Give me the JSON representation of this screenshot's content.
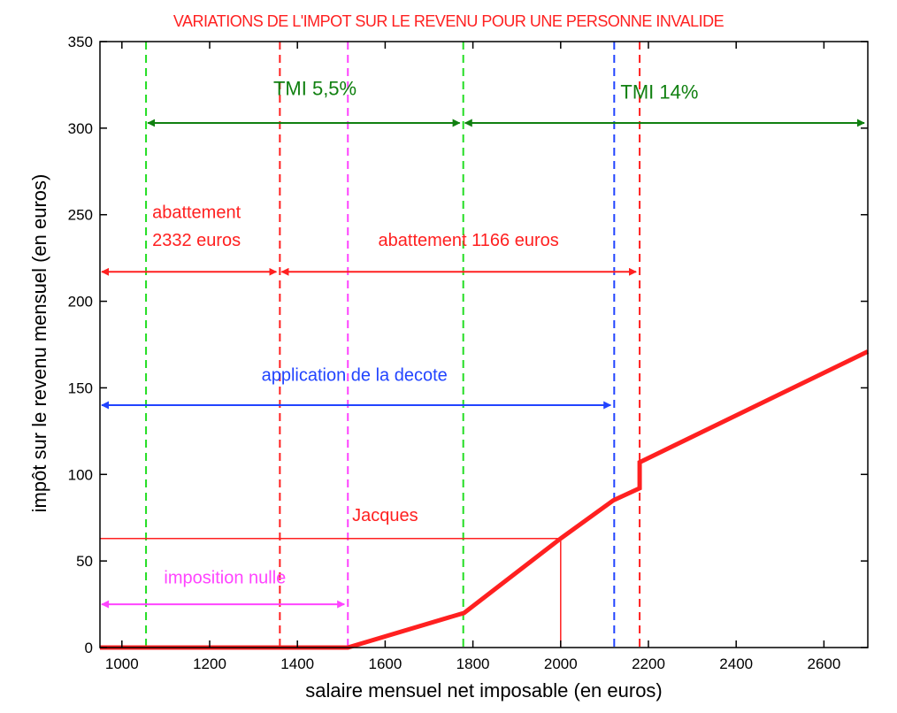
{
  "chart_data": {
    "type": "line",
    "title": "VARIATIONS DE L'IMPOT SUR LE REVENU POUR UNE PERSONNE INVALIDE",
    "xlabel": "salaire mensuel net imposable (en euros)",
    "ylabel": "impôt sur le revenu mensuel (en euros)",
    "xlim": [
      950,
      2700
    ],
    "ylim": [
      0,
      350
    ],
    "x_ticks": [
      1000,
      1200,
      1400,
      1600,
      1800,
      2000,
      2200,
      2400,
      2600
    ],
    "y_ticks": [
      0,
      50,
      100,
      150,
      200,
      250,
      300,
      350
    ],
    "grid": false,
    "series": [
      {
        "color": "#ff2020",
        "points": [
          {
            "x": 950,
            "y": 0
          },
          {
            "x": 1515,
            "y": 0
          },
          {
            "x": 1780,
            "y": 20
          },
          {
            "x": 2000,
            "y": 63
          },
          {
            "x": 2120,
            "y": 85
          },
          {
            "x": 2180,
            "y": 92
          },
          {
            "x": 2180,
            "y": 107
          },
          {
            "x": 2700,
            "y": 171
          }
        ]
      }
    ],
    "vertical_lines": [
      {
        "x": 1055,
        "color": "#22dd22",
        "dashed": true
      },
      {
        "x": 1778,
        "color": "#22dd22",
        "dashed": true
      },
      {
        "x": 1360,
        "color": "#ff2020",
        "dashed": true
      },
      {
        "x": 2180,
        "color": "#ff2020",
        "dashed": true
      },
      {
        "x": 1515,
        "color": "#ff44ff",
        "dashed": true
      },
      {
        "x": 2122,
        "color": "#2244ff",
        "dashed": true
      }
    ],
    "ranges": [
      {
        "x_from": 1055,
        "x_to": 1778,
        "y": 303,
        "color": "#108010"
      },
      {
        "x_from": 1778,
        "x_to": 2700,
        "y": 303,
        "color": "#108010"
      },
      {
        "x_from": 950,
        "x_to": 1360,
        "y": 217,
        "color": "#ff2020"
      },
      {
        "x_from": 1360,
        "x_to": 2180,
        "y": 217,
        "color": "#ff2020"
      },
      {
        "x_from": 950,
        "x_to": 2122,
        "y": 140,
        "color": "#2244ff"
      },
      {
        "x_from": 950,
        "x_to": 1515,
        "y": 25,
        "color": "#ff44ff"
      }
    ],
    "annotations": [
      {
        "text": "TMI 5,5%",
        "x": 1440,
        "y": 319,
        "color": "#108010"
      },
      {
        "text": "TMI 14%",
        "x": 2225,
        "y": 317,
        "color": "#108010"
      },
      {
        "text": "abattement",
        "x": 1170,
        "y": 248,
        "color": "#ff2020"
      },
      {
        "text": "2332 euros",
        "x": 1170,
        "y": 232,
        "color": "#ff2020"
      },
      {
        "text": "abattement 1166 euros",
        "x": 1790,
        "y": 232,
        "color": "#ff2020"
      },
      {
        "text": "application de la decote",
        "x": 1530,
        "y": 154,
        "color": "#2244ff"
      },
      {
        "text": "Jacques",
        "x": 1600,
        "y": 73,
        "color": "#ff2020"
      },
      {
        "text": "imposition nulle",
        "x": 1235,
        "y": 37,
        "color": "#ff44ff"
      }
    ],
    "reference": {
      "x": 2000,
      "y": 63,
      "color": "#ff2020"
    }
  }
}
